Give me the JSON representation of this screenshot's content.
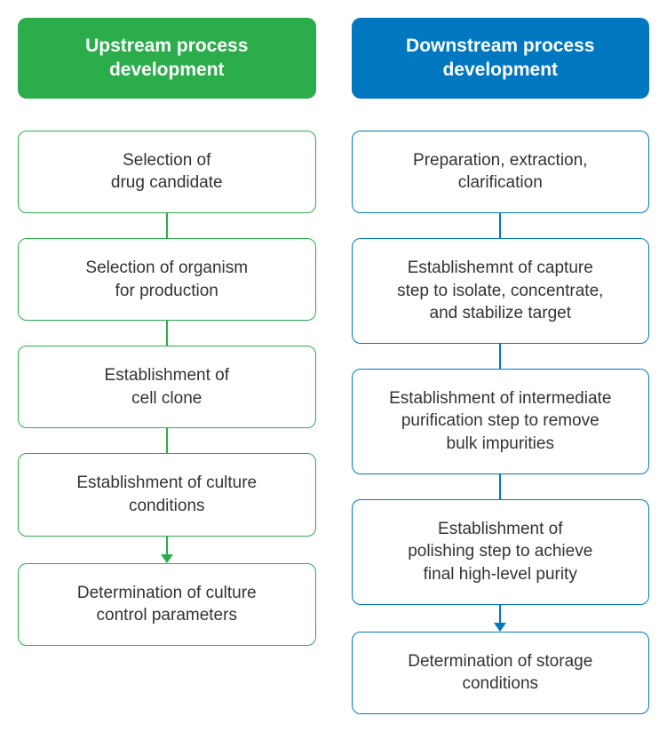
{
  "diagram": {
    "type": "flowchart",
    "columns": [
      {
        "id": "upstream",
        "header": "Upstream process development",
        "header_bg": "#2bad4b",
        "accent": "#2bad4b",
        "steps": [
          "Selection of\ndrug candidate",
          "Selection of organism\nfor production",
          "Establishment of\ncell clone",
          "Establishment of culture\nconditions",
          "Determination of culture\ncontrol parameters"
        ]
      },
      {
        "id": "downstream",
        "header": "Downstream process development",
        "header_bg": "#0078c1",
        "accent": "#0078c1",
        "steps": [
          "Preparation, extraction,\nclarification",
          "Establishemnt of capture\nstep to isolate, concentrate,\nand stabilize target",
          "Establishment of intermediate\npurification step to remove\nbulk impurities",
          "Establishment of\npolishing step to achieve\nfinal high-level purity",
          "Determination of storage\nconditions"
        ]
      }
    ],
    "style": {
      "background_color": "#ffffff",
      "text_color": "#333333",
      "header_text_color": "#ffffff",
      "border_radius": 10,
      "header_fontsize": 21,
      "step_fontsize": 19,
      "connector_height": 28,
      "arrow_line_height": 20
    }
  }
}
